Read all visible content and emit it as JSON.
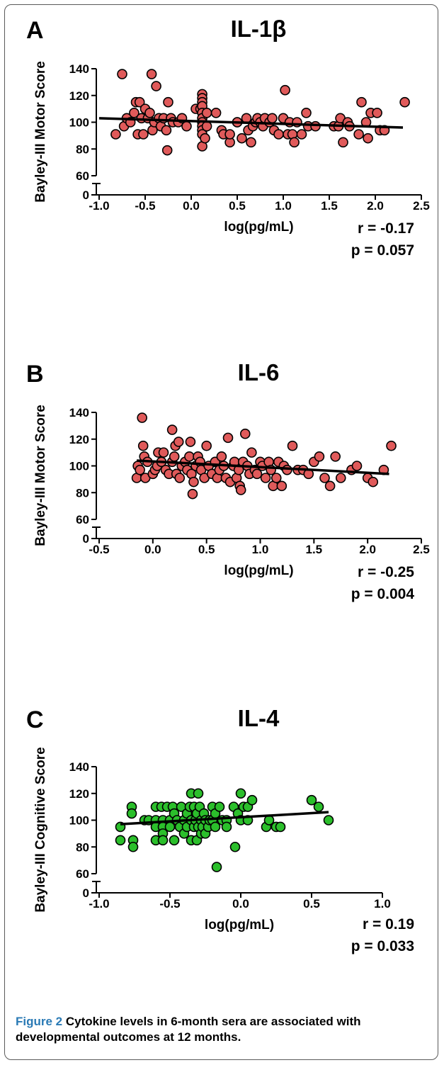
{
  "figure": {
    "caption_label": "Figure 2",
    "caption_text": "Cytokine levels in 6-month sera are associated with developmental outcomes at 12 months."
  },
  "chart_data": [
    {
      "type": "scatter",
      "panel_letter": "A",
      "title": "IL-1β",
      "xlabel": "log(pg/mL)",
      "ylabel": "Bayley-III Motor Score",
      "xlim": [
        -1.0,
        2.5
      ],
      "ylim": [
        60,
        140
      ],
      "y_axis_break": true,
      "xticks": [
        "-1.0",
        "-0.5",
        "0.0",
        "0.5",
        "1.0",
        "1.5",
        "2.0",
        "2.5"
      ],
      "yticks": [
        "0",
        "60",
        "80",
        "100",
        "120",
        "140"
      ],
      "point_color": "#e05a5a",
      "annotation": [
        "r = -0.17",
        "p = 0.057"
      ],
      "trendline": {
        "x": [
          -1.0,
          2.3
        ],
        "y": [
          103,
          96
        ]
      },
      "points": [
        [
          -0.82,
          91
        ],
        [
          -0.75,
          136
        ],
        [
          -0.73,
          97
        ],
        [
          -0.7,
          103
        ],
        [
          -0.66,
          100
        ],
        [
          -0.62,
          107
        ],
        [
          -0.6,
          115
        ],
        [
          -0.58,
          91
        ],
        [
          -0.56,
          115
        ],
        [
          -0.54,
          103
        ],
        [
          -0.52,
          91
        ],
        [
          -0.5,
          110
        ],
        [
          -0.47,
          103
        ],
        [
          -0.45,
          107
        ],
        [
          -0.43,
          136
        ],
        [
          -0.42,
          94
        ],
        [
          -0.4,
          100
        ],
        [
          -0.38,
          127
        ],
        [
          -0.35,
          103
        ],
        [
          -0.33,
          97
        ],
        [
          -0.3,
          103
        ],
        [
          -0.27,
          94
        ],
        [
          -0.26,
          79
        ],
        [
          -0.25,
          115
        ],
        [
          -0.22,
          103
        ],
        [
          -0.2,
          100
        ],
        [
          -0.14,
          100
        ],
        [
          -0.1,
          103
        ],
        [
          -0.05,
          97
        ],
        [
          0.05,
          110
        ],
        [
          0.1,
          110
        ],
        [
          0.12,
          121
        ],
        [
          0.12,
          118
        ],
        [
          0.12,
          115
        ],
        [
          0.12,
          112
        ],
        [
          0.12,
          107
        ],
        [
          0.12,
          103
        ],
        [
          0.12,
          100
        ],
        [
          0.12,
          97
        ],
        [
          0.12,
          94
        ],
        [
          0.12,
          91
        ],
        [
          0.12,
          82
        ],
        [
          0.15,
          88
        ],
        [
          0.17,
          107
        ],
        [
          0.17,
          97
        ],
        [
          0.27,
          107
        ],
        [
          0.33,
          94
        ],
        [
          0.35,
          91
        ],
        [
          0.42,
          85
        ],
        [
          0.42,
          91
        ],
        [
          0.5,
          100
        ],
        [
          0.5,
          100
        ],
        [
          0.55,
          88
        ],
        [
          0.6,
          103
        ],
        [
          0.62,
          94
        ],
        [
          0.65,
          85
        ],
        [
          0.67,
          97
        ],
        [
          0.7,
          100
        ],
        [
          0.72,
          103
        ],
        [
          0.75,
          100
        ],
        [
          0.78,
          97
        ],
        [
          0.8,
          103
        ],
        [
          0.85,
          100
        ],
        [
          0.88,
          103
        ],
        [
          0.9,
          94
        ],
        [
          0.95,
          91
        ],
        [
          1.0,
          103
        ],
        [
          1.02,
          124
        ],
        [
          1.05,
          91
        ],
        [
          1.07,
          100
        ],
        [
          1.1,
          91
        ],
        [
          1.12,
          85
        ],
        [
          1.15,
          100
        ],
        [
          1.2,
          91
        ],
        [
          1.25,
          107
        ],
        [
          1.27,
          97
        ],
        [
          1.35,
          97
        ],
        [
          1.55,
          97
        ],
        [
          1.6,
          97
        ],
        [
          1.62,
          103
        ],
        [
          1.65,
          85
        ],
        [
          1.7,
          100
        ],
        [
          1.72,
          97
        ],
        [
          1.82,
          91
        ],
        [
          1.85,
          115
        ],
        [
          1.9,
          100
        ],
        [
          1.92,
          88
        ],
        [
          1.95,
          107
        ],
        [
          2.02,
          107
        ],
        [
          2.05,
          94
        ],
        [
          2.1,
          94
        ],
        [
          2.32,
          115
        ]
      ]
    },
    {
      "type": "scatter",
      "panel_letter": "B",
      "title": "IL-6",
      "xlabel": "log(pg/mL)",
      "ylabel": "Bayley-III Motor Score",
      "xlim": [
        -0.5,
        2.5
      ],
      "ylim": [
        60,
        140
      ],
      "y_axis_break": true,
      "xticks": [
        "-0.5",
        "0.0",
        "0.5",
        "1.0",
        "1.5",
        "2.0",
        "2.5"
      ],
      "yticks": [
        "0",
        "60",
        "80",
        "100",
        "120",
        "140"
      ],
      "point_color": "#e05a5a",
      "annotation": [
        "r = -0.25",
        "p = 0.004"
      ],
      "trendline": {
        "x": [
          -0.15,
          2.2
        ],
        "y": [
          104,
          94
        ]
      },
      "points": [
        [
          -0.15,
          91
        ],
        [
          -0.14,
          100
        ],
        [
          -0.12,
          97
        ],
        [
          -0.1,
          136
        ],
        [
          -0.09,
          115
        ],
        [
          -0.08,
          107
        ],
        [
          -0.07,
          91
        ],
        [
          -0.05,
          103
        ],
        [
          0.0,
          94
        ],
        [
          0.02,
          97
        ],
        [
          0.04,
          100
        ],
        [
          0.05,
          110
        ],
        [
          0.08,
          103
        ],
        [
          0.1,
          110
        ],
        [
          0.12,
          97
        ],
        [
          0.15,
          94
        ],
        [
          0.18,
          127
        ],
        [
          0.18,
          103
        ],
        [
          0.2,
          107
        ],
        [
          0.21,
          115
        ],
        [
          0.22,
          94
        ],
        [
          0.24,
          118
        ],
        [
          0.25,
          91
        ],
        [
          0.27,
          100
        ],
        [
          0.3,
          103
        ],
        [
          0.32,
          97
        ],
        [
          0.34,
          107
        ],
        [
          0.35,
          118
        ],
        [
          0.36,
          94
        ],
        [
          0.37,
          79
        ],
        [
          0.38,
          88
        ],
        [
          0.4,
          100
        ],
        [
          0.42,
          107
        ],
        [
          0.44,
          103
        ],
        [
          0.45,
          97
        ],
        [
          0.48,
          91
        ],
        [
          0.5,
          115
        ],
        [
          0.52,
          100
        ],
        [
          0.55,
          94
        ],
        [
          0.58,
          103
        ],
        [
          0.6,
          91
        ],
        [
          0.62,
          97
        ],
        [
          0.64,
          107
        ],
        [
          0.66,
          100
        ],
        [
          0.68,
          91
        ],
        [
          0.7,
          121
        ],
        [
          0.72,
          88
        ],
        [
          0.75,
          100
        ],
        [
          0.76,
          103
        ],
        [
          0.78,
          91
        ],
        [
          0.8,
          97
        ],
        [
          0.81,
          85
        ],
        [
          0.82,
          82
        ],
        [
          0.84,
          103
        ],
        [
          0.86,
          124
        ],
        [
          0.88,
          100
        ],
        [
          0.9,
          94
        ],
        [
          0.92,
          110
        ],
        [
          0.95,
          97
        ],
        [
          0.97,
          94
        ],
        [
          1.0,
          103
        ],
        [
          1.02,
          100
        ],
        [
          1.05,
          91
        ],
        [
          1.08,
          103
        ],
        [
          1.1,
          97
        ],
        [
          1.12,
          85
        ],
        [
          1.15,
          91
        ],
        [
          1.17,
          103
        ],
        [
          1.2,
          85
        ],
        [
          1.22,
          100
        ],
        [
          1.25,
          97
        ],
        [
          1.3,
          115
        ],
        [
          1.35,
          97
        ],
        [
          1.4,
          97
        ],
        [
          1.45,
          94
        ],
        [
          1.5,
          103
        ],
        [
          1.55,
          107
        ],
        [
          1.6,
          91
        ],
        [
          1.65,
          85
        ],
        [
          1.7,
          107
        ],
        [
          1.75,
          91
        ],
        [
          1.85,
          97
        ],
        [
          1.9,
          100
        ],
        [
          2.0,
          91
        ],
        [
          2.05,
          88
        ],
        [
          2.15,
          97
        ],
        [
          2.22,
          115
        ]
      ]
    },
    {
      "type": "scatter",
      "panel_letter": "C",
      "title": "IL-4",
      "xlabel": "log(pg/mL)",
      "ylabel": "Bayley-III Cognitive Score",
      "xlim": [
        -1.0,
        1.0
      ],
      "ylim": [
        60,
        140
      ],
      "y_axis_break": true,
      "xticks": [
        "-1.0",
        "-0.5",
        "0.0",
        "0.5",
        "1.0"
      ],
      "yticks": [
        "0",
        "60",
        "80",
        "100",
        "120",
        "140"
      ],
      "point_color": "#2bbf2b",
      "annotation": [
        "r = 0.19",
        "p = 0.033"
      ],
      "trendline": {
        "x": [
          -0.85,
          0.62
        ],
        "y": [
          97,
          106
        ]
      },
      "points": [
        [
          -0.85,
          95
        ],
        [
          -0.85,
          85
        ],
        [
          -0.77,
          110
        ],
        [
          -0.77,
          105
        ],
        [
          -0.76,
          85
        ],
        [
          -0.76,
          80
        ],
        [
          -0.68,
          100
        ],
        [
          -0.65,
          100
        ],
        [
          -0.6,
          110
        ],
        [
          -0.6,
          100
        ],
        [
          -0.6,
          95
        ],
        [
          -0.6,
          85
        ],
        [
          -0.56,
          110
        ],
        [
          -0.55,
          100
        ],
        [
          -0.55,
          95
        ],
        [
          -0.55,
          90
        ],
        [
          -0.55,
          85
        ],
        [
          -0.52,
          110
        ],
        [
          -0.5,
          100
        ],
        [
          -0.5,
          95
        ],
        [
          -0.48,
          110
        ],
        [
          -0.47,
          105
        ],
        [
          -0.47,
          85
        ],
        [
          -0.45,
          100
        ],
        [
          -0.43,
          95
        ],
        [
          -0.42,
          110
        ],
        [
          -0.4,
          100
        ],
        [
          -0.4,
          90
        ],
        [
          -0.38,
          105
        ],
        [
          -0.38,
          95
        ],
        [
          -0.36,
          110
        ],
        [
          -0.35,
          120
        ],
        [
          -0.35,
          100
        ],
        [
          -0.35,
          85
        ],
        [
          -0.33,
          110
        ],
        [
          -0.33,
          95
        ],
        [
          -0.32,
          100
        ],
        [
          -0.31,
          105
        ],
        [
          -0.31,
          85
        ],
        [
          -0.3,
          120
        ],
        [
          -0.3,
          95
        ],
        [
          -0.29,
          110
        ],
        [
          -0.28,
          90
        ],
        [
          -0.28,
          100
        ],
        [
          -0.27,
          95
        ],
        [
          -0.26,
          105
        ],
        [
          -0.25,
          100
        ],
        [
          -0.25,
          90
        ],
        [
          -0.23,
          95
        ],
        [
          -0.22,
          100
        ],
        [
          -0.2,
          110
        ],
        [
          -0.2,
          100
        ],
        [
          -0.18,
          105
        ],
        [
          -0.18,
          95
        ],
        [
          -0.17,
          65
        ],
        [
          -0.15,
          110
        ],
        [
          -0.13,
          100
        ],
        [
          -0.1,
          100
        ],
        [
          -0.1,
          95
        ],
        [
          -0.05,
          110
        ],
        [
          -0.04,
          80
        ],
        [
          -0.02,
          105
        ],
        [
          0.0,
          120
        ],
        [
          0.0,
          100
        ],
        [
          0.02,
          110
        ],
        [
          0.05,
          110
        ],
        [
          0.05,
          100
        ],
        [
          0.08,
          115
        ],
        [
          0.18,
          95
        ],
        [
          0.2,
          100
        ],
        [
          0.25,
          95
        ],
        [
          0.28,
          95
        ],
        [
          0.5,
          115
        ],
        [
          0.55,
          110
        ],
        [
          0.62,
          100
        ]
      ]
    }
  ]
}
